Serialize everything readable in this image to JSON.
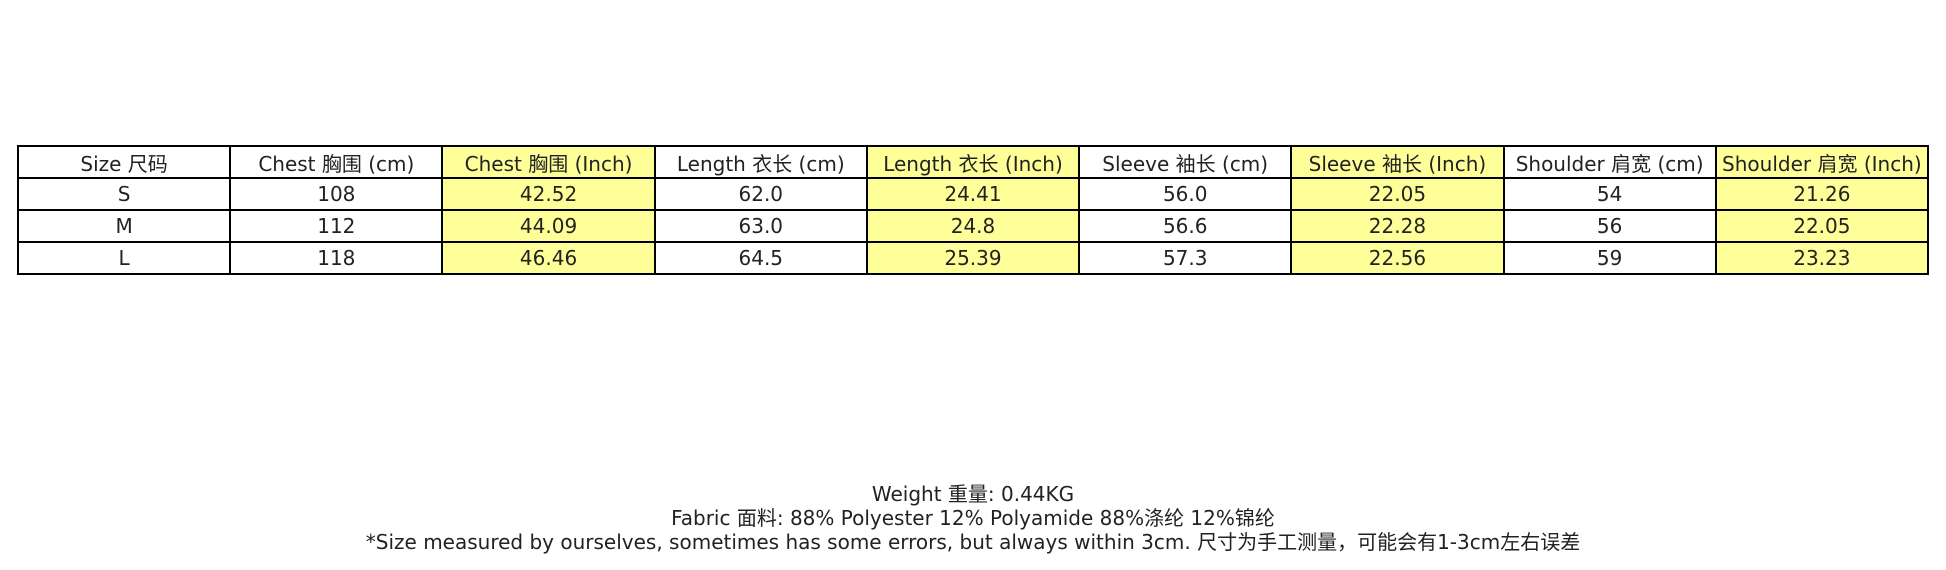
{
  "table": {
    "header": [
      "Size 尺码",
      "Chest 胸围 (cm)",
      "Chest 胸围 (Inch)",
      "Length 衣长 (cm)",
      "Length 衣长 (Inch)",
      "Sleeve 袖长 (cm)",
      "Sleeve 袖长 (Inch)",
      "Shoulder 肩宽 (cm)",
      "Shoulder 肩宽 (Inch)"
    ],
    "rows": [
      [
        "S",
        "108",
        "42.52",
        "62.0",
        "24.41",
        "56.0",
        "22.05",
        "54",
        "21.26"
      ],
      [
        "M",
        "112",
        "44.09",
        "63.0",
        "24.8",
        "56.6",
        "22.28",
        "56",
        "22.05"
      ],
      [
        "L",
        "118",
        "46.46",
        "64.5",
        "25.39",
        "57.3",
        "22.56",
        "59",
        "23.23"
      ]
    ],
    "highlight_columns": [
      2,
      4,
      6,
      8
    ],
    "highlight_color": "#ffff99"
  },
  "notes": [
    "Weight 重量: 0.44KG",
    "Fabric 面料: 88% Polyester 12% Polyamide  88%涤纶 12%锦纶",
    "*Size measured by ourselves, sometimes has some errors, but always within 3cm. 尺寸为手工测量，可能会有1-3cm左右误差"
  ]
}
